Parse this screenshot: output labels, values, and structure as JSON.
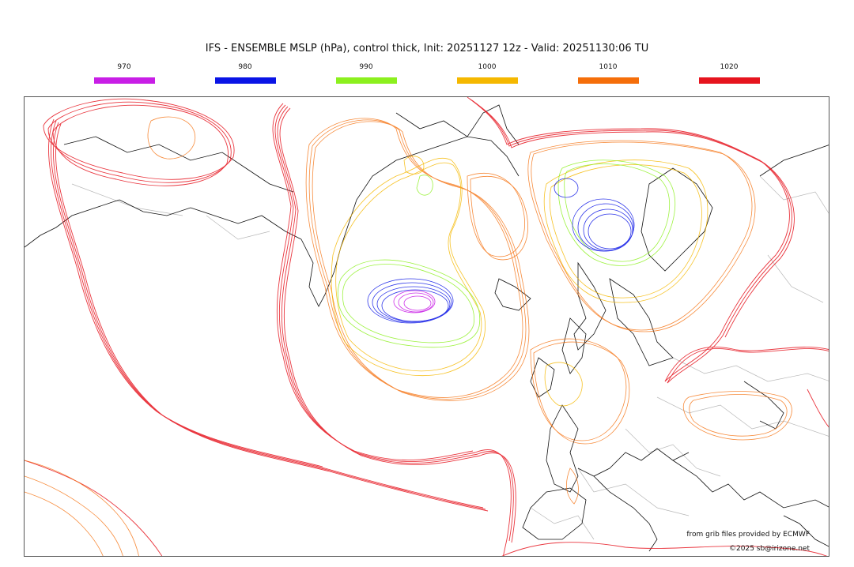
{
  "title": "IFS - ENSEMBLE MSLP (hPa), control thick, Init: 20251127 12z - Valid: 20251130:06 TU",
  "legend": [
    {
      "label": "970",
      "color": "#c81ee6"
    },
    {
      "label": "980",
      "color": "#0a14e6"
    },
    {
      "label": "990",
      "color": "#8cf01e"
    },
    {
      "label": "1000",
      "color": "#f5b800"
    },
    {
      "label": "1010",
      "color": "#f56e0a"
    },
    {
      "label": "1020",
      "color": "#e6141e"
    }
  ],
  "credits": {
    "source": "from grib files provided by ECMWF",
    "copyright": "©2025 sb@irizone.net"
  },
  "map": {
    "projection": "Europe / North Atlantic",
    "features": [
      "coastlines",
      "country borders",
      "ensemble isobars"
    ]
  }
}
